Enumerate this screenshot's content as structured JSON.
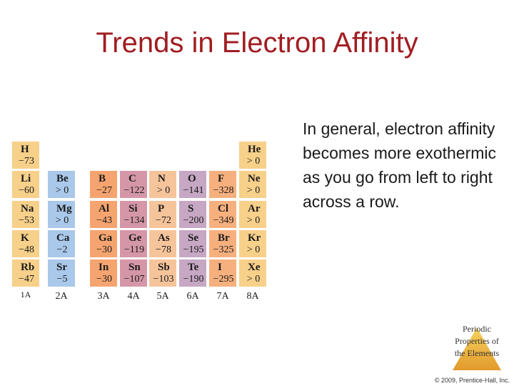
{
  "slide": {
    "title": "Trends in Electron Affinity",
    "body": "In general, electron affinity becomes more exothermic as you go from left to right across a row.",
    "logo_text": "Periodic Properties of the Elements",
    "copyright": "© 2009, Prentice-Hall, Inc."
  },
  "colors": {
    "title": "#a11d21",
    "s_block": "#f7d08a",
    "s_block_2a": "#a9c8ea",
    "p_block": "#f5a470",
    "group_4a": "#d597a8",
    "group_5a": "#f6c49a",
    "group_6a": "#c6a7c4",
    "group_7a": "#f6b07e",
    "group_8a": "#f7d08a"
  },
  "periodic_table": {
    "elements": [
      {
        "symbol": "H",
        "value": "−73",
        "col": 0,
        "row": 0
      },
      {
        "symbol": "He",
        "value": "> 0",
        "col": 7,
        "row": 0
      },
      {
        "symbol": "Li",
        "value": "−60",
        "col": 0,
        "row": 1
      },
      {
        "symbol": "Be",
        "value": "> 0",
        "col": 1,
        "row": 1
      },
      {
        "symbol": "B",
        "value": "−27",
        "col": 2,
        "row": 1
      },
      {
        "symbol": "C",
        "value": "−122",
        "col": 3,
        "row": 1
      },
      {
        "symbol": "N",
        "value": "> 0",
        "col": 4,
        "row": 1
      },
      {
        "symbol": "O",
        "value": "−141",
        "col": 5,
        "row": 1
      },
      {
        "symbol": "F",
        "value": "−328",
        "col": 6,
        "row": 1
      },
      {
        "symbol": "Ne",
        "value": "> 0",
        "col": 7,
        "row": 1
      },
      {
        "symbol": "Na",
        "value": "−53",
        "col": 0,
        "row": 2
      },
      {
        "symbol": "Mg",
        "value": "> 0",
        "col": 1,
        "row": 2
      },
      {
        "symbol": "Al",
        "value": "−43",
        "col": 2,
        "row": 2
      },
      {
        "symbol": "Si",
        "value": "−134",
        "col": 3,
        "row": 2
      },
      {
        "symbol": "P",
        "value": "−72",
        "col": 4,
        "row": 2
      },
      {
        "symbol": "S",
        "value": "−200",
        "col": 5,
        "row": 2
      },
      {
        "symbol": "Cl",
        "value": "−349",
        "col": 6,
        "row": 2
      },
      {
        "symbol": "Ar",
        "value": "> 0",
        "col": 7,
        "row": 2
      },
      {
        "symbol": "K",
        "value": "−48",
        "col": 0,
        "row": 3
      },
      {
        "symbol": "Ca",
        "value": "−2",
        "col": 1,
        "row": 3
      },
      {
        "symbol": "Ga",
        "value": "−30",
        "col": 2,
        "row": 3
      },
      {
        "symbol": "Ge",
        "value": "−119",
        "col": 3,
        "row": 3
      },
      {
        "symbol": "As",
        "value": "−78",
        "col": 4,
        "row": 3
      },
      {
        "symbol": "Se",
        "value": "−195",
        "col": 5,
        "row": 3
      },
      {
        "symbol": "Br",
        "value": "−325",
        "col": 6,
        "row": 3
      },
      {
        "symbol": "Kr",
        "value": "> 0",
        "col": 7,
        "row": 3
      },
      {
        "symbol": "Rb",
        "value": "−47",
        "col": 0,
        "row": 4
      },
      {
        "symbol": "Sr",
        "value": "−5",
        "col": 1,
        "row": 4
      },
      {
        "symbol": "In",
        "value": "−30",
        "col": 2,
        "row": 4
      },
      {
        "symbol": "Sn",
        "value": "−107",
        "col": 3,
        "row": 4
      },
      {
        "symbol": "Sb",
        "value": "−103",
        "col": 4,
        "row": 4
      },
      {
        "symbol": "Te",
        "value": "−190",
        "col": 5,
        "row": 4
      },
      {
        "symbol": "I",
        "value": "−295",
        "col": 6,
        "row": 4
      },
      {
        "symbol": "Xe",
        "value": "> 0",
        "col": 7,
        "row": 4
      }
    ],
    "group_labels": [
      "1A",
      "2A",
      "3A",
      "4A",
      "5A",
      "6A",
      "7A",
      "8A"
    ]
  }
}
